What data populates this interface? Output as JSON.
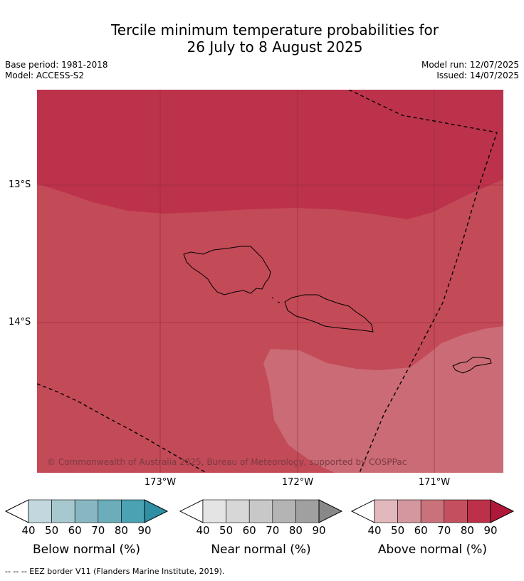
{
  "title_line1": "Tercile minimum temperature probabilities for",
  "title_line2": "26 July to 8 August 2025",
  "meta_left": [
    "Base period: 1981-2018",
    "Model: ACCESS-S2"
  ],
  "meta_right": [
    "Model run: 12/07/2025",
    "Issued: 14/07/2025"
  ],
  "map": {
    "lat_labels": [
      "13°S",
      "14°S"
    ],
    "lon_labels": [
      "173°W",
      "172°W",
      "171°W"
    ],
    "copyright": "© Commonwealth of Australia 2025, Bureau of Meteorology, supported by COSPPac",
    "regions": [
      {
        "category": "Above normal",
        "probability_bin": "80-90",
        "color": "#bc324b"
      },
      {
        "category": "Above normal",
        "probability_bin": "70-80",
        "color": "#c34a57"
      },
      {
        "category": "Above normal",
        "probability_bin": "60-70",
        "color": "#cb6b75"
      }
    ]
  },
  "colorbars": [
    {
      "label": "Below normal (%)",
      "ticks": [
        "40",
        "50",
        "60",
        "70",
        "80",
        "90"
      ],
      "colors": [
        "#ffffff",
        "#c2d8de",
        "#a6c8ce",
        "#88b7c1",
        "#6badba",
        "#4aa2b3",
        "#2e8fa5"
      ]
    },
    {
      "label": "Near normal (%)",
      "ticks": [
        "40",
        "50",
        "60",
        "70",
        "80",
        "90"
      ],
      "colors": [
        "#ffffff",
        "#e4e4e4",
        "#d7d7d7",
        "#c8c8c8",
        "#b4b4b4",
        "#a0a0a0",
        "#888888"
      ]
    },
    {
      "label": "Above normal (%)",
      "ticks": [
        "40",
        "50",
        "60",
        "70",
        "80",
        "90"
      ],
      "colors": [
        "#ffffff",
        "#e2b8bd",
        "#d4979f",
        "#ca727b",
        "#c4505f",
        "#bc3049",
        "#b0183a"
      ]
    }
  ],
  "footer": "--  --  -- EEZ border V11 (Flanders Marine Institute, 2019)."
}
